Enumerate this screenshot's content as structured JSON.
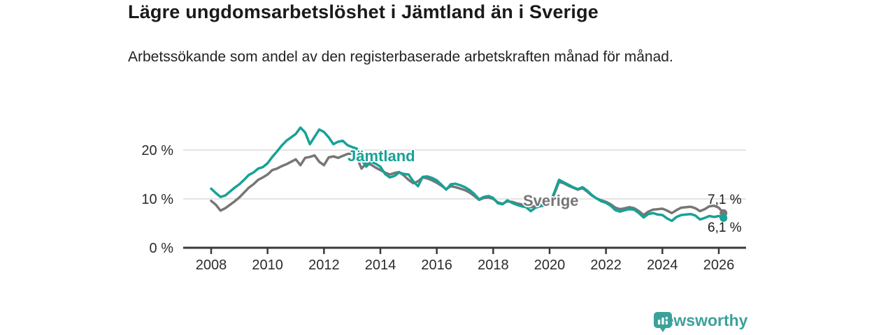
{
  "header": {
    "title": "Lägre ungdomsarbetslöshet i Jämtland än i Sverige",
    "subtitle": "Arbetssökande som andel av den registerbaserade arbetskraften månad för månad."
  },
  "branding": {
    "logo_text": "Newsworthy",
    "logo_icon": "bar-chart-bubble-icon"
  },
  "colors": {
    "jamtland_line": "#17A297",
    "sverige_line": "#767676",
    "gridline": "#DCDCDC",
    "axis": "#3A3A3A",
    "tick_text": "#2B2B2B",
    "title_text": "#1A1A1A",
    "logo_teal": "#3BA19B"
  },
  "chart_data": {
    "type": "line",
    "title": "Lägre ungdomsarbetslöshet i Jämtland än i Sverige",
    "subtitle": "Arbetssökande som andel av den registerbaserade arbetskraften månad för månad.",
    "x_unit": "year",
    "x_start": 2008,
    "x_step": 0.16667,
    "xticks": [
      2008,
      2010,
      2012,
      2014,
      2016,
      2018,
      2020,
      2022,
      2024,
      2026
    ],
    "yticks": [
      0,
      10,
      20
    ],
    "ytick_suffix": " %",
    "ylim": [
      0,
      26
    ],
    "xlim": [
      2007.0,
      2027.0
    ],
    "grid": "horizontal",
    "legend_position": "inline-labels",
    "series": [
      {
        "name": "Jämtland",
        "color": "#17A297",
        "end_label": "6,1 %",
        "final_value": 6.1,
        "values": [
          12.1,
          11.2,
          10.4,
          10.7,
          11.5,
          12.3,
          13.0,
          13.9,
          14.9,
          15.4,
          16.2,
          16.5,
          17.3,
          18.6,
          19.7,
          20.9,
          21.9,
          22.6,
          23.3,
          24.6,
          23.6,
          21.2,
          22.7,
          24.2,
          23.7,
          22.6,
          21.2,
          21.7,
          21.9,
          21.0,
          20.6,
          20.3,
          18.0,
          16.6,
          17.6,
          17.2,
          16.6,
          15.1,
          14.4,
          14.7,
          15.4,
          15.1,
          15.0,
          13.6,
          12.6,
          14.5,
          14.6,
          14.3,
          13.8,
          12.9,
          11.9,
          13.0,
          13.1,
          12.8,
          12.4,
          11.8,
          11.0,
          9.9,
          10.4,
          10.6,
          10.2,
          9.1,
          8.9,
          9.7,
          9.2,
          8.8,
          8.5,
          8.3,
          7.5,
          8.2,
          8.5,
          8.7,
          8.9,
          11.3,
          13.9,
          13.4,
          12.9,
          12.4,
          12.0,
          12.4,
          11.7,
          10.8,
          10.1,
          9.5,
          9.2,
          8.6,
          7.7,
          7.4,
          7.7,
          7.9,
          7.8,
          7.1,
          6.2,
          6.9,
          7.1,
          6.8,
          6.7,
          6.0,
          5.5,
          6.3,
          6.7,
          6.8,
          6.9,
          6.6,
          5.8,
          6.1,
          6.5,
          6.3,
          6.5,
          6.1
        ]
      },
      {
        "name": "Sverige",
        "color": "#767676",
        "end_label": "7,1 %",
        "final_value": 7.1,
        "values": [
          9.6,
          8.8,
          7.6,
          8.1,
          8.8,
          9.5,
          10.3,
          11.3,
          12.3,
          13.0,
          13.9,
          14.4,
          15.0,
          15.9,
          16.2,
          16.7,
          17.1,
          17.6,
          18.1,
          16.9,
          18.4,
          18.6,
          18.9,
          17.6,
          16.9,
          18.5,
          18.7,
          18.4,
          18.8,
          19.2,
          19.3,
          18.5,
          16.2,
          17.3,
          17.0,
          16.4,
          15.9,
          15.4,
          15.0,
          15.3,
          15.5,
          14.8,
          13.9,
          13.2,
          13.6,
          14.4,
          14.2,
          13.8,
          13.3,
          12.7,
          12.0,
          12.6,
          12.4,
          12.1,
          11.8,
          11.3,
          10.6,
          9.8,
          10.2,
          10.3,
          10.0,
          9.3,
          9.0,
          9.5,
          9.4,
          9.1,
          8.9,
          8.7,
          8.3,
          8.6,
          8.8,
          8.9,
          9.0,
          11.0,
          13.5,
          13.2,
          12.7,
          12.3,
          11.9,
          12.2,
          11.5,
          10.7,
          10.1,
          9.7,
          9.4,
          8.9,
          8.2,
          7.9,
          8.1,
          8.3,
          8.1,
          7.5,
          6.7,
          7.4,
          7.8,
          7.9,
          8.0,
          7.6,
          7.1,
          7.7,
          8.2,
          8.3,
          8.4,
          8.1,
          7.5,
          7.9,
          8.5,
          8.6,
          8.2,
          7.1
        ]
      }
    ],
    "annotations": [
      {
        "text": "Jämtland",
        "x": 2012.86,
        "y": 18.3,
        "color": "#17A297"
      },
      {
        "text": "Sverige",
        "x": 2019.08,
        "y": 9.6,
        "color": "#757575"
      }
    ]
  }
}
